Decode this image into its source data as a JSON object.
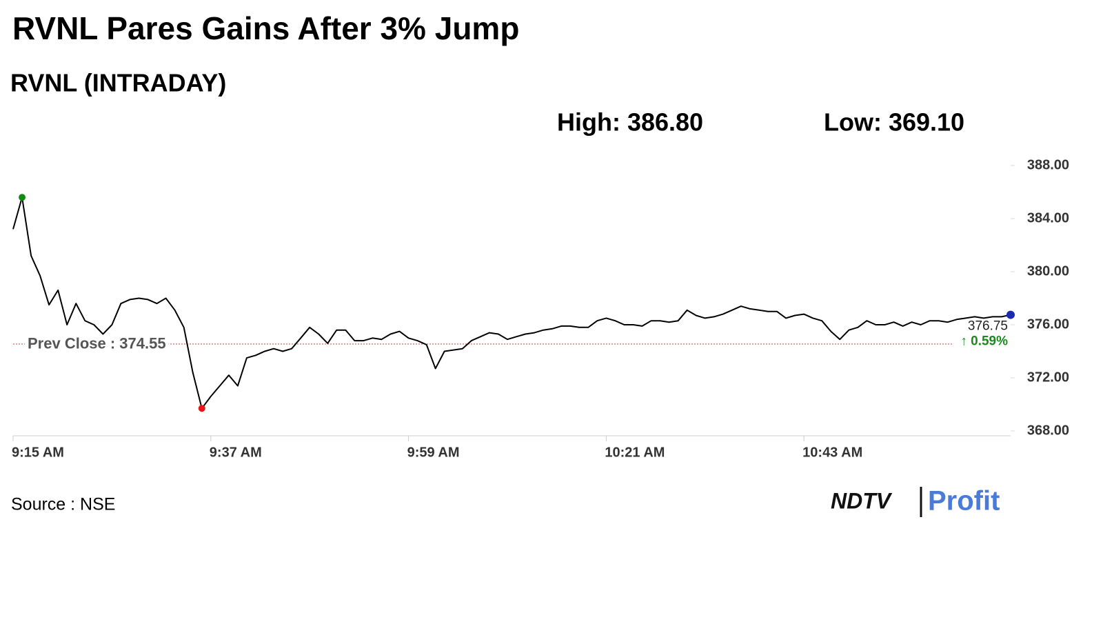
{
  "chart_data": {
    "type": "line",
    "title": "RVNL Pares Gains After 3% Jump",
    "subtitle": "RVNL (INTRADAY)",
    "high_label": "High: 386.80",
    "low_label": "Low: 369.10",
    "categories": [
      "9:15 AM",
      null,
      null,
      null,
      null,
      null,
      null,
      null,
      null,
      null,
      null,
      null,
      null,
      null,
      null,
      null,
      null,
      null,
      null,
      null,
      null,
      null,
      "9:37 AM",
      null,
      null,
      null,
      null,
      null,
      null,
      null,
      null,
      null,
      null,
      null,
      null,
      null,
      null,
      null,
      null,
      null,
      null,
      null,
      null,
      null,
      "9:59 AM",
      null,
      null,
      null,
      null,
      null,
      null,
      null,
      null,
      null,
      null,
      null,
      null,
      null,
      null,
      null,
      null,
      null,
      null,
      null,
      null,
      null,
      "10:21 AM",
      null,
      null,
      null,
      null,
      null,
      null,
      null,
      null,
      null,
      null,
      null,
      null,
      null,
      null,
      null,
      null,
      null,
      null,
      null,
      null,
      null,
      "10:43 AM",
      null,
      null,
      null,
      null,
      null,
      null,
      null,
      null,
      null,
      null,
      null,
      null,
      null,
      null,
      null,
      null,
      null,
      null,
      null,
      null,
      null,
      null,
      null
    ],
    "series": [
      {
        "name": "RVNL",
        "color": "#000000",
        "values": [
          383.2,
          385.6,
          381.2,
          379.7,
          377.5,
          378.6,
          376.0,
          377.6,
          376.3,
          376.0,
          375.3,
          376.0,
          377.6,
          377.9,
          378.0,
          377.9,
          377.6,
          378.0,
          377.1,
          375.8,
          372.4,
          369.7,
          370.6,
          371.4,
          372.2,
          371.4,
          373.5,
          373.7,
          374.0,
          374.2,
          374.0,
          374.2,
          375.0,
          375.8,
          375.3,
          374.6,
          375.6,
          375.6,
          374.8,
          374.8,
          375.0,
          374.9,
          375.3,
          375.5,
          375.0,
          374.8,
          374.5,
          372.7,
          374.0,
          374.1,
          374.2,
          374.8,
          375.1,
          375.4,
          375.3,
          374.9,
          375.1,
          375.3,
          375.4,
          375.6,
          375.7,
          375.9,
          375.9,
          375.8,
          375.8,
          376.3,
          376.5,
          376.3,
          376.0,
          376.0,
          375.9,
          376.3,
          376.3,
          376.2,
          376.3,
          377.1,
          376.7,
          376.5,
          376.6,
          376.8,
          377.1,
          377.4,
          377.2,
          377.1,
          377.0,
          377.0,
          376.5,
          376.7,
          376.8,
          376.5,
          376.3,
          375.5,
          374.9,
          375.6,
          375.8,
          376.3,
          376.0,
          376.0,
          376.2,
          375.9,
          376.2,
          376.0,
          376.3,
          376.3,
          376.2,
          376.4,
          376.5,
          376.6,
          376.5,
          376.6,
          376.6,
          376.75
        ]
      }
    ],
    "ylim": [
      368,
      388
    ],
    "yticks": [
      {
        "value": 368,
        "label": "368.00"
      },
      {
        "value": 372,
        "label": "372.00"
      },
      {
        "value": 376,
        "label": "376.00"
      },
      {
        "value": 380,
        "label": "380.00"
      },
      {
        "value": 384,
        "label": "384.00"
      },
      {
        "value": 388,
        "label": "388.00"
      }
    ],
    "reference_line": {
      "value": 374.55,
      "label": "Prev Close : 374.55",
      "color": "#d9534f"
    },
    "change_label": "↑ 0.59%",
    "change_color": "#1a8a1a",
    "high_color": "#138a13",
    "low_color": "#e8141a",
    "last_color": "#1a2bb0",
    "source": "Source : NSE",
    "brand": [
      "NDTV",
      "Profit"
    ]
  }
}
